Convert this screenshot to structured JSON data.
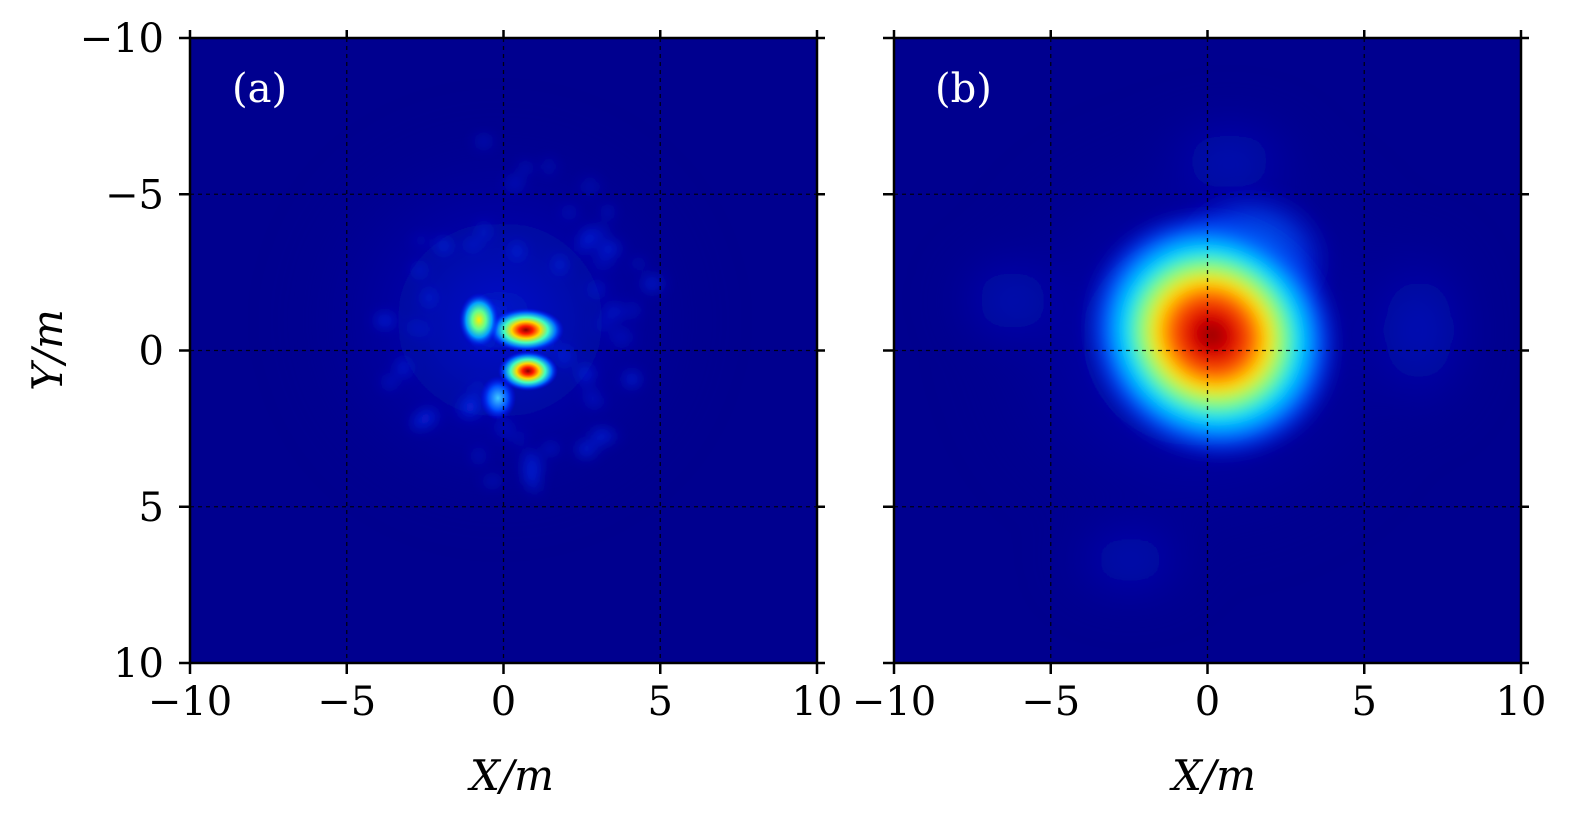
{
  "chart_data": [
    {
      "type": "heatmap",
      "panel_label": "(a)",
      "xlabel": "X/m",
      "ylabel": "Y/m",
      "xlim": [
        -10,
        10
      ],
      "ylim": [
        -10,
        10
      ],
      "y_axis_inverted": true,
      "xticks": [
        -10,
        -5,
        0,
        5,
        10
      ],
      "xtick_labels": [
        "−10",
        "−5",
        "0",
        "5",
        "10"
      ],
      "yticks": [
        -10,
        -5,
        0,
        5,
        10
      ],
      "ytick_labels": [
        "−10",
        "−5",
        "0",
        "5",
        "10"
      ],
      "grid": true,
      "colormap": "jet",
      "background_color": "#00008f",
      "peaks": [
        {
          "x": 0.7,
          "y": -0.6,
          "intensity": 1.0
        },
        {
          "x": 0.8,
          "y": 0.7,
          "intensity": 0.92
        },
        {
          "x": -0.8,
          "y": -0.9,
          "intensity": 0.75
        },
        {
          "x": -0.2,
          "y": 1.5,
          "intensity": 0.55
        }
      ],
      "speckle_extent": {
        "x": [
          -4,
          5
        ],
        "y": [
          -7,
          5
        ]
      }
    },
    {
      "type": "heatmap",
      "panel_label": "(b)",
      "xlabel": "X/m",
      "ylabel": "",
      "xlim": [
        -10,
        10
      ],
      "ylim": [
        -10,
        10
      ],
      "y_axis_inverted": true,
      "xticks": [
        -10,
        -5,
        0,
        5,
        10
      ],
      "xtick_labels": [
        "−10",
        "−5",
        "0",
        "5",
        "10"
      ],
      "yticks": [
        -10,
        -5,
        0,
        5,
        10
      ],
      "grid": true,
      "colormap": "jet",
      "background_color": "#00008f",
      "peaks": [
        {
          "x": 0.3,
          "y": -0.3,
          "intensity": 1.0
        }
      ],
      "halo_extent": {
        "x": [
          -6,
          7
        ],
        "y": [
          -7,
          8
        ]
      }
    }
  ]
}
